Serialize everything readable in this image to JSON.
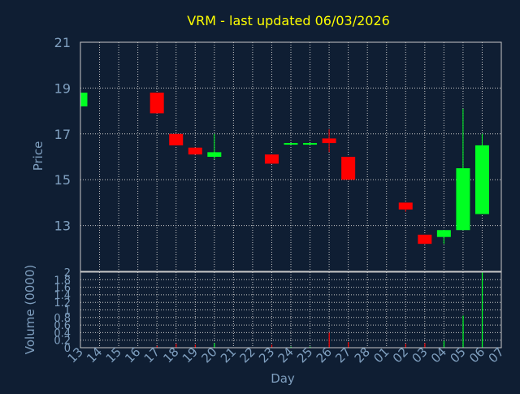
{
  "chart_data": {
    "type": "candlestick",
    "title": "VRM - last updated 06/03/2026",
    "xlabel": "Day",
    "ylabel": "Price",
    "volume_label": "Volume (0000)",
    "x_ticks": [
      "13",
      "14",
      "15",
      "16",
      "17",
      "18",
      "19",
      "20",
      "21",
      "22",
      "23",
      "24",
      "25",
      "26",
      "27",
      "28",
      "01",
      "02",
      "03",
      "04",
      "05",
      "06",
      "07"
    ],
    "price_axis": {
      "min": 11,
      "max": 21,
      "ticks": [
        13,
        15,
        17,
        19,
        21
      ]
    },
    "volume_axis": {
      "min": 0,
      "max": 2,
      "ticks": [
        "0",
        "0.2",
        "0.4",
        "0.6",
        "0.8",
        "1",
        "1.2",
        "1.4",
        "1.6",
        "1.8",
        "2"
      ]
    },
    "grid": true,
    "candles": [
      {
        "day": "13",
        "open": 18.2,
        "high": 18.8,
        "low": 18.2,
        "close": 18.8,
        "volume": 0.02
      },
      {
        "day": "17",
        "open": 18.8,
        "high": 18.8,
        "low": 17.9,
        "close": 17.9,
        "volume": 0.05
      },
      {
        "day": "18",
        "open": 17.0,
        "high": 17.0,
        "low": 16.5,
        "close": 16.5,
        "volume": 0.1
      },
      {
        "day": "19",
        "open": 16.4,
        "high": 16.4,
        "low": 16.1,
        "close": 16.1,
        "volume": 0.08
      },
      {
        "day": "20",
        "open": 16.0,
        "high": 17.0,
        "low": 15.9,
        "close": 16.2,
        "volume": 0.12
      },
      {
        "day": "23",
        "open": 16.1,
        "high": 16.1,
        "low": 15.7,
        "close": 15.7,
        "volume": 0.08
      },
      {
        "day": "24",
        "open": 16.6,
        "high": 16.6,
        "low": 16.55,
        "close": 16.6,
        "volume": 0.03
      },
      {
        "day": "25",
        "open": 16.6,
        "high": 16.6,
        "low": 16.55,
        "close": 16.6,
        "volume": 0.03
      },
      {
        "day": "26",
        "open": 16.8,
        "high": 17.2,
        "low": 16.2,
        "close": 16.6,
        "volume": 0.4
      },
      {
        "day": "27",
        "open": 16.0,
        "high": 16.0,
        "low": 15.0,
        "close": 15.0,
        "volume": 0.15
      },
      {
        "day": "02",
        "open": 14.0,
        "high": 14.0,
        "low": 13.6,
        "close": 13.7,
        "volume": 0.1
      },
      {
        "day": "03",
        "open": 12.6,
        "high": 12.6,
        "low": 12.2,
        "close": 12.2,
        "volume": 0.12
      },
      {
        "day": "04",
        "open": 12.5,
        "high": 12.8,
        "low": 12.2,
        "close": 12.8,
        "volume": 0.18
      },
      {
        "day": "05",
        "open": 12.8,
        "high": 18.1,
        "low": 12.8,
        "close": 15.5,
        "volume": 0.85
      },
      {
        "day": "06",
        "open": 13.5,
        "high": 17.0,
        "low": 13.5,
        "close": 16.5,
        "volume": 2.0
      }
    ],
    "colors": {
      "background": "#0f1e33",
      "up": "#00ff22",
      "down": "#ff0000",
      "title": "#ffff00",
      "text": "#7f9fbf",
      "grid": "#c8c8c8",
      "frame": "#c8c8c8"
    }
  }
}
